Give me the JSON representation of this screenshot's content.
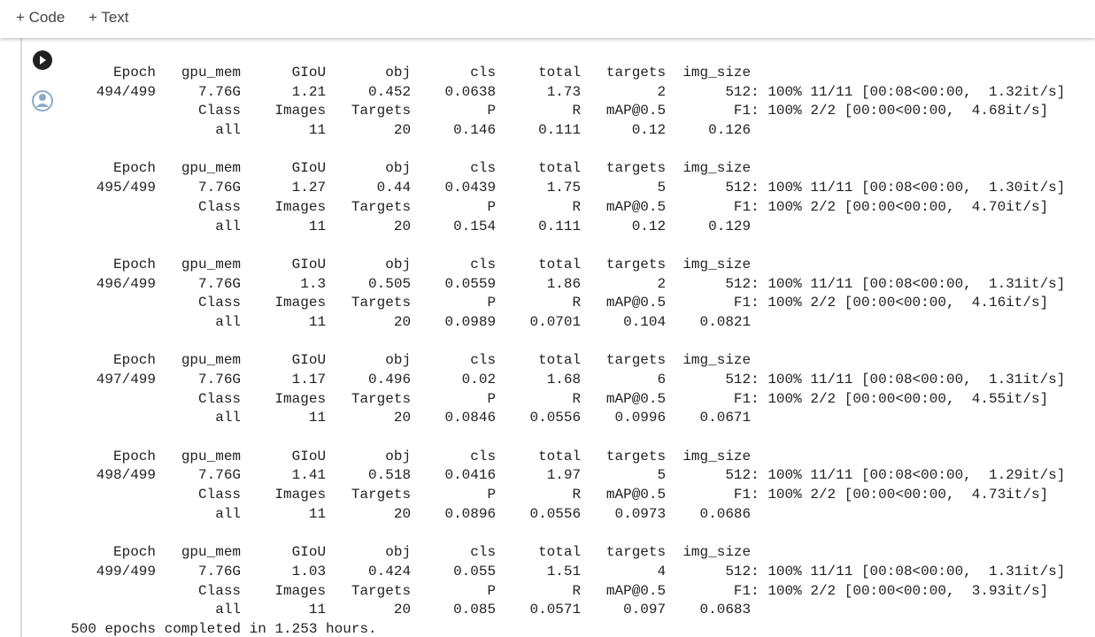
{
  "toolbar": {
    "add_code": "+ Code",
    "add_text": "+ Text"
  },
  "output": {
    "train_header": [
      "Epoch",
      "gpu_mem",
      "GIoU",
      "obj",
      "cls",
      "total",
      "targets",
      "img_size"
    ],
    "val_header": [
      "Class",
      "Images",
      "Targets",
      "P",
      "R",
      "mAP@0.5",
      "F1"
    ],
    "epochs": [
      {
        "train": [
          "494/499",
          "7.76G",
          "1.21",
          "0.452",
          "0.0638",
          "1.73",
          "2",
          "512"
        ],
        "train_progress": ": 100% 11/11 [00:08<00:00,  1.32it/s]",
        "val_progress": ": 100% 2/2 [00:00<00:00,  4.68it/s]",
        "results": [
          "all",
          "11",
          "20",
          "0.146",
          "0.111",
          "0.12",
          "0.126"
        ]
      },
      {
        "train": [
          "495/499",
          "7.76G",
          "1.27",
          "0.44",
          "0.0439",
          "1.75",
          "5",
          "512"
        ],
        "train_progress": ": 100% 11/11 [00:08<00:00,  1.30it/s]",
        "val_progress": ": 100% 2/2 [00:00<00:00,  4.70it/s]",
        "results": [
          "all",
          "11",
          "20",
          "0.154",
          "0.111",
          "0.12",
          "0.129"
        ]
      },
      {
        "train": [
          "496/499",
          "7.76G",
          "1.3",
          "0.505",
          "0.0559",
          "1.86",
          "2",
          "512"
        ],
        "train_progress": ": 100% 11/11 [00:08<00:00,  1.31it/s]",
        "val_progress": ": 100% 2/2 [00:00<00:00,  4.16it/s]",
        "results": [
          "all",
          "11",
          "20",
          "0.0989",
          "0.0701",
          "0.104",
          "0.0821"
        ]
      },
      {
        "train": [
          "497/499",
          "7.76G",
          "1.17",
          "0.496",
          "0.02",
          "1.68",
          "6",
          "512"
        ],
        "train_progress": ": 100% 11/11 [00:08<00:00,  1.31it/s]",
        "val_progress": ": 100% 2/2 [00:00<00:00,  4.55it/s]",
        "results": [
          "all",
          "11",
          "20",
          "0.0846",
          "0.0556",
          "0.0996",
          "0.0671"
        ]
      },
      {
        "train": [
          "498/499",
          "7.76G",
          "1.41",
          "0.518",
          "0.0416",
          "1.97",
          "5",
          "512"
        ],
        "train_progress": ": 100% 11/11 [00:08<00:00,  1.29it/s]",
        "val_progress": ": 100% 2/2 [00:00<00:00,  4.73it/s]",
        "results": [
          "all",
          "11",
          "20",
          "0.0896",
          "0.0556",
          "0.0973",
          "0.0686"
        ]
      },
      {
        "train": [
          "499/499",
          "7.76G",
          "1.03",
          "0.424",
          "0.055",
          "1.51",
          "4",
          "512"
        ],
        "train_progress": ": 100% 11/11 [00:08<00:00,  1.31it/s]",
        "val_progress": ": 100% 2/2 [00:00<00:00,  3.93it/s]",
        "results": [
          "all",
          "11",
          "20",
          "0.085",
          "0.0571",
          "0.097",
          "0.0683"
        ]
      }
    ],
    "summary": "500 epochs completed in 1.253 hours."
  }
}
